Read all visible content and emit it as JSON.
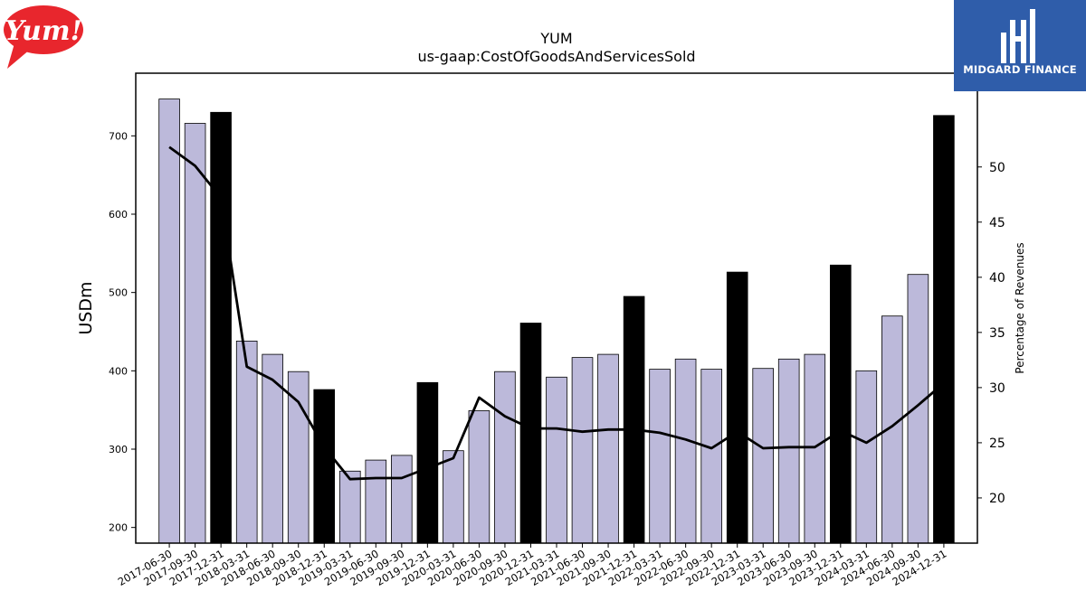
{
  "logos": {
    "left_text": "Yum!",
    "right_text": "MIDGARD FINANCE"
  },
  "colors": {
    "bar_quarter": "#bcb9da",
    "bar_year_end": "#000000",
    "line": "#000000",
    "logo_left": "#e8262d",
    "logo_right": "#2f5daa"
  },
  "chart_data": {
    "type": "bar",
    "title": "YUM",
    "subtitle": "us-gaap:CostOfGoodsAndServicesSold",
    "ylabel": "USDm",
    "y2label": "Percentage of Revenues",
    "ylim": [
      180,
      780
    ],
    "y2lim": [
      15.9,
      58.5
    ],
    "yticks": [
      200,
      300,
      400,
      500,
      600,
      700
    ],
    "y2ticks": [
      20,
      25,
      30,
      35,
      40,
      45,
      50
    ],
    "categories": [
      "2017-06-30",
      "2017-09-30",
      "2017-12-31",
      "2018-03-31",
      "2018-06-30",
      "2018-09-30",
      "2018-12-31",
      "2019-03-31",
      "2019-06-30",
      "2019-09-30",
      "2019-12-31",
      "2020-03-31",
      "2020-06-30",
      "2020-09-30",
      "2020-12-31",
      "2021-03-31",
      "2021-06-30",
      "2021-09-30",
      "2021-12-31",
      "2022-03-31",
      "2022-06-30",
      "2022-09-30",
      "2022-12-31",
      "2023-03-31",
      "2023-06-30",
      "2023-09-30",
      "2023-12-31",
      "2024-03-31",
      "2024-06-30",
      "2024-09-30",
      "2024-12-31"
    ],
    "series": [
      {
        "values": [
          747,
          716,
          730,
          438,
          421,
          399,
          376,
          272,
          286,
          292,
          385,
          298,
          349,
          399,
          461,
          392,
          417,
          421,
          495,
          402,
          415,
          402,
          526,
          403,
          415,
          421,
          535,
          400,
          470,
          523,
          726
        ]
      },
      {
        "axis": "right",
        "values": [
          51.8,
          50.1,
          47.2,
          31.9,
          30.7,
          28.7,
          24.6,
          21.7,
          21.8,
          21.8,
          22.7,
          23.6,
          29.1,
          27.4,
          26.3,
          26.3,
          26.0,
          26.2,
          26.2,
          25.9,
          25.3,
          24.5,
          26.0,
          24.5,
          24.6,
          24.6,
          26.1,
          25.0,
          26.5,
          28.4,
          30.4
        ]
      }
    ],
    "year_end_highlight": true,
    "grid": false,
    "legend": "none"
  }
}
